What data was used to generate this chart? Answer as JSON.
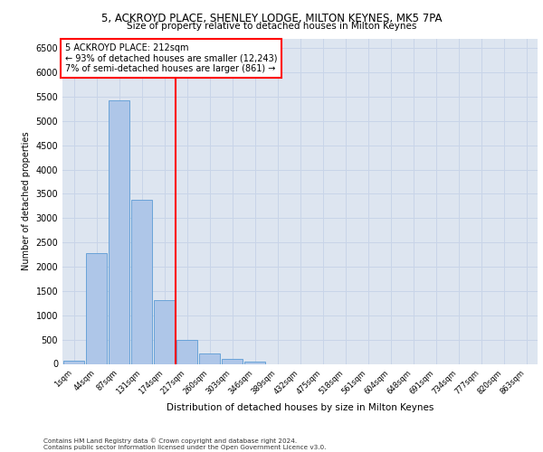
{
  "title1": "5, ACKROYD PLACE, SHENLEY LODGE, MILTON KEYNES, MK5 7PA",
  "title2": "Size of property relative to detached houses in Milton Keynes",
  "xlabel": "Distribution of detached houses by size in Milton Keynes",
  "ylabel": "Number of detached properties",
  "footer1": "Contains HM Land Registry data © Crown copyright and database right 2024.",
  "footer2": "Contains public sector information licensed under the Open Government Licence v3.0.",
  "annotation_line1": "5 ACKROYD PLACE: 212sqm",
  "annotation_line2": "← 93% of detached houses are smaller (12,243)",
  "annotation_line3": "7% of semi-detached houses are larger (861) →",
  "categories": [
    "1sqm",
    "44sqm",
    "87sqm",
    "131sqm",
    "174sqm",
    "217sqm",
    "260sqm",
    "303sqm",
    "346sqm",
    "389sqm",
    "432sqm",
    "475sqm",
    "518sqm",
    "561sqm",
    "604sqm",
    "648sqm",
    "691sqm",
    "734sqm",
    "777sqm",
    "820sqm",
    "863sqm"
  ],
  "values": [
    70,
    2280,
    5420,
    3380,
    1310,
    490,
    210,
    95,
    55,
    0,
    0,
    0,
    0,
    0,
    0,
    0,
    0,
    0,
    0,
    0,
    0
  ],
  "bar_color": "#aec6e8",
  "bar_edge_color": "#5b9bd5",
  "vline_color": "red",
  "annotation_box_color": "red",
  "grid_color": "#c8d4e8",
  "ylim": [
    0,
    6700
  ],
  "yticks": [
    0,
    500,
    1000,
    1500,
    2000,
    2500,
    3000,
    3500,
    4000,
    4500,
    5000,
    5500,
    6000,
    6500
  ],
  "bg_color": "#dde5f0"
}
